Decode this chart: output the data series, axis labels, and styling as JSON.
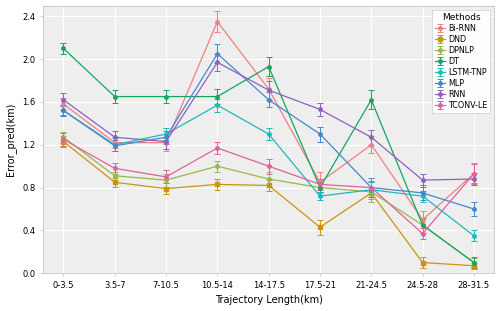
{
  "x_labels": [
    "0-3.5",
    "3.5-7",
    "7-10.5",
    "10.5-14",
    "14-17.5",
    "17.5-21",
    "21-24.5",
    "24.5-28",
    "28-31.5"
  ],
  "x": [
    0,
    1,
    2,
    3,
    4,
    5,
    6,
    7,
    8
  ],
  "methods": {
    "Bi-RNN": {
      "color": "#f08080",
      "marker": "o",
      "y": [
        1.58,
        1.22,
        1.22,
        2.35,
        1.72,
        0.85,
        1.2,
        0.5,
        0.93
      ],
      "yerr": [
        0.06,
        0.05,
        0.08,
        0.1,
        0.1,
        0.1,
        0.08,
        0.08,
        0.1
      ]
    },
    "DND": {
      "color": "#c8960a",
      "marker": "s",
      "y": [
        1.23,
        0.85,
        0.79,
        0.83,
        0.82,
        0.43,
        0.75,
        0.1,
        0.07
      ],
      "yerr": [
        0.05,
        0.04,
        0.05,
        0.05,
        0.05,
        0.07,
        0.06,
        0.05,
        0.03
      ]
    },
    "DPNLP": {
      "color": "#98b848",
      "marker": "o",
      "y": [
        1.27,
        0.91,
        0.87,
        1.0,
        0.88,
        0.8,
        0.76,
        0.45,
        0.1
      ],
      "yerr": [
        0.05,
        0.04,
        0.06,
        0.05,
        0.07,
        0.04,
        0.09,
        0.07,
        0.04
      ]
    },
    "DT": {
      "color": "#10a860",
      "marker": "o",
      "y": [
        2.1,
        1.65,
        1.65,
        1.65,
        1.93,
        0.8,
        1.62,
        0.45,
        0.1
      ],
      "yerr": [
        0.05,
        0.06,
        0.06,
        0.07,
        0.09,
        0.04,
        0.09,
        0.07,
        0.05
      ]
    },
    "LSTM-TNP": {
      "color": "#20b8b8",
      "marker": "o",
      "y": [
        1.52,
        1.2,
        1.3,
        1.57,
        1.3,
        0.72,
        0.78,
        0.72,
        0.35
      ],
      "yerr": [
        0.04,
        0.06,
        0.06,
        0.06,
        0.06,
        0.04,
        0.07,
        0.05,
        0.05
      ]
    },
    "MLP": {
      "color": "#4488cc",
      "marker": "o",
      "y": [
        1.52,
        1.19,
        1.27,
        2.05,
        1.62,
        1.3,
        0.8,
        0.75,
        0.6
      ],
      "yerr": [
        0.05,
        0.05,
        0.06,
        0.09,
        0.07,
        0.07,
        0.09,
        0.07,
        0.07
      ]
    },
    "RNN": {
      "color": "#9060c0",
      "marker": "o",
      "y": [
        1.62,
        1.27,
        1.23,
        1.97,
        1.71,
        1.53,
        1.27,
        0.87,
        0.88
      ],
      "yerr": [
        0.06,
        0.06,
        0.07,
        0.08,
        0.09,
        0.06,
        0.07,
        0.06,
        0.06
      ]
    },
    "TCONV-LE": {
      "color": "#e060a0",
      "marker": "o",
      "y": [
        1.25,
        0.98,
        0.9,
        1.17,
        1.0,
        0.83,
        0.8,
        0.37,
        0.93
      ],
      "yerr": [
        0.06,
        0.05,
        0.06,
        0.06,
        0.07,
        0.05,
        0.06,
        0.05,
        0.09
      ]
    }
  },
  "xlabel": "Trajectory Length(km)",
  "ylabel": "Error_pred(km)",
  "ylim": [
    0.0,
    2.5
  ],
  "yticks": [
    0.0,
    0.4,
    0.8,
    1.2,
    1.6,
    2.0,
    2.4
  ],
  "plot_bg": "#eeeeee",
  "fig_bg": "#ffffff",
  "grid_color": "#ffffff",
  "legend_title": "Methods"
}
